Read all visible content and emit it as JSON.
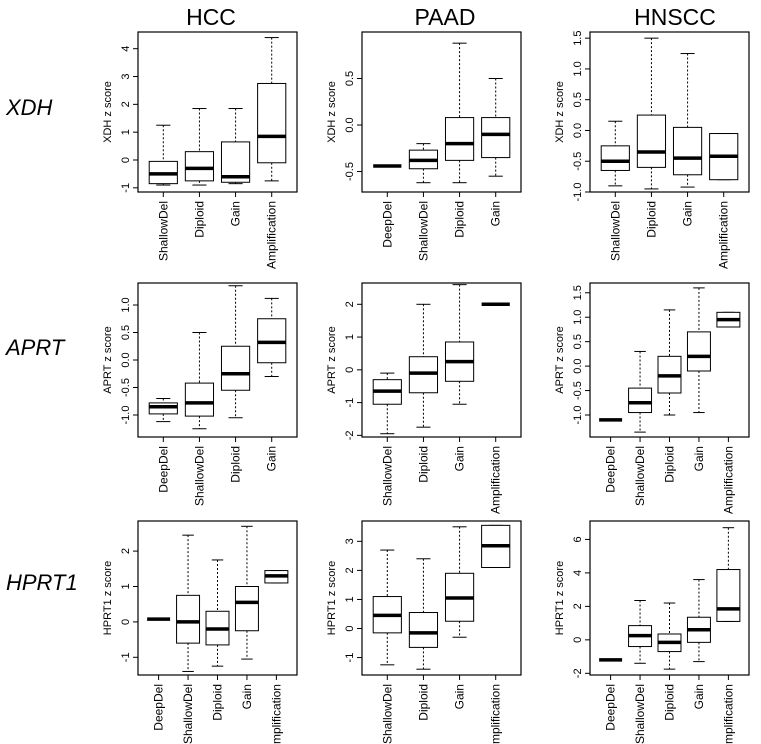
{
  "columns": [
    "HCC",
    "PAAD",
    "HNSCC"
  ],
  "rows": [
    "XDH",
    "APRT",
    "HPRT1"
  ],
  "chart_data": [
    {
      "type": "box",
      "gene": "XDH",
      "dataset": "HCC",
      "ylabel": "XDH z score",
      "ylim": [
        -1.15,
        4.6
      ],
      "yticks": [
        -1,
        0,
        1,
        2,
        3,
        4
      ],
      "categories": [
        "ShallowDel",
        "Diploid",
        "Gain",
        "Amplification"
      ],
      "boxes": [
        {
          "min": -0.9,
          "q1": -0.85,
          "median": -0.5,
          "q3": -0.05,
          "max": 1.25
        },
        {
          "min": -0.9,
          "q1": -0.75,
          "median": -0.3,
          "q3": 0.3,
          "max": 1.85
        },
        {
          "min": -0.85,
          "q1": -0.8,
          "median": -0.6,
          "q3": 0.65,
          "max": 1.85
        },
        {
          "min": -0.75,
          "q1": -0.1,
          "median": 0.85,
          "q3": 2.75,
          "max": 4.4
        }
      ]
    },
    {
      "type": "box",
      "gene": "XDH",
      "dataset": "PAAD",
      "ylabel": "XDH z score",
      "ylim": [
        -0.72,
        1.0
      ],
      "yticks": [
        -0.5,
        0.0,
        0.5
      ],
      "yticklabels": [
        "-0.5",
        "0.0",
        "0.5"
      ],
      "categories": [
        "DeepDel",
        "ShallowDel",
        "Diploid",
        "Gain"
      ],
      "boxes": [
        {
          "min": -0.44,
          "q1": -0.44,
          "median": -0.44,
          "q3": -0.44,
          "max": -0.44
        },
        {
          "min": -0.62,
          "q1": -0.47,
          "median": -0.38,
          "q3": -0.27,
          "max": -0.2
        },
        {
          "min": -0.62,
          "q1": -0.38,
          "median": -0.2,
          "q3": 0.08,
          "max": 0.88
        },
        {
          "min": -0.55,
          "q1": -0.35,
          "median": -0.1,
          "q3": 0.08,
          "max": 0.5
        }
      ]
    },
    {
      "type": "box",
      "gene": "XDH",
      "dataset": "HNSCC",
      "ylabel": "XDH z score",
      "ylim": [
        -1.0,
        1.6
      ],
      "yticks": [
        -1.0,
        -0.5,
        0.0,
        0.5,
        1.0,
        1.5
      ],
      "yticklabels": [
        "-1.0",
        "-0.5",
        "0.0",
        "0.5",
        "1.0",
        "1.5"
      ],
      "categories": [
        "ShallowDel",
        "Diploid",
        "Gain",
        "Amplification"
      ],
      "boxes": [
        {
          "min": -0.9,
          "q1": -0.65,
          "median": -0.5,
          "q3": -0.25,
          "max": 0.15
        },
        {
          "min": -0.95,
          "q1": -0.6,
          "median": -0.35,
          "q3": 0.25,
          "max": 1.5
        },
        {
          "min": -0.92,
          "q1": -0.72,
          "median": -0.45,
          "q3": 0.05,
          "max": 1.25
        },
        {
          "min": -0.8,
          "q1": -0.8,
          "median": -0.42,
          "q3": -0.05,
          "max": -0.05
        }
      ]
    },
    {
      "type": "box",
      "gene": "APRT",
      "dataset": "HCC",
      "ylabel": "APRT z score",
      "ylim": [
        -1.4,
        1.4
      ],
      "yticks": [
        -1.0,
        -0.5,
        0.0,
        0.5,
        1.0
      ],
      "yticklabels": [
        "-1.0",
        "-0.5",
        "0.0",
        "0.5",
        "1.0"
      ],
      "categories": [
        "DeepDel",
        "ShallowDel",
        "Diploid",
        "Gain"
      ],
      "boxes": [
        {
          "min": -1.12,
          "q1": -0.98,
          "median": -0.85,
          "q3": -0.78,
          "max": -0.7
        },
        {
          "min": -1.25,
          "q1": -1.02,
          "median": -0.78,
          "q3": -0.42,
          "max": 0.5
        },
        {
          "min": -1.05,
          "q1": -0.55,
          "median": -0.25,
          "q3": 0.25,
          "max": 1.35
        },
        {
          "min": -0.3,
          "q1": -0.05,
          "median": 0.32,
          "q3": 0.75,
          "max": 1.12
        }
      ]
    },
    {
      "type": "box",
      "gene": "APRT",
      "dataset": "PAAD",
      "ylabel": "APRT z score",
      "ylim": [
        -2.05,
        2.65
      ],
      "yticks": [
        -2,
        -1,
        0,
        1,
        2
      ],
      "categories": [
        "ShallowDel",
        "Diploid",
        "Gain",
        "Amplification"
      ],
      "boxes": [
        {
          "min": -1.95,
          "q1": -1.05,
          "median": -0.65,
          "q3": -0.3,
          "max": -0.1
        },
        {
          "min": -1.75,
          "q1": -0.7,
          "median": -0.1,
          "q3": 0.4,
          "max": 2.0
        },
        {
          "min": -1.05,
          "q1": -0.35,
          "median": 0.25,
          "q3": 0.85,
          "max": 2.6
        },
        {
          "min": 2.0,
          "q1": 2.0,
          "median": 2.0,
          "q3": 2.0,
          "max": 2.0
        }
      ]
    },
    {
      "type": "box",
      "gene": "APRT",
      "dataset": "HNSCC",
      "ylabel": "APRT z score",
      "ylim": [
        -1.45,
        1.7
      ],
      "yticks": [
        -1.0,
        -0.5,
        0.0,
        0.5,
        1.0,
        1.5
      ],
      "yticklabels": [
        "-1.0",
        "-0.5",
        "0.0",
        "0.5",
        "1.0",
        "1.5"
      ],
      "categories": [
        "DeepDel",
        "ShallowDel",
        "Diploid",
        "Gain",
        "Amplification"
      ],
      "boxes": [
        {
          "min": -1.1,
          "q1": -1.1,
          "median": -1.1,
          "q3": -1.1,
          "max": -1.1
        },
        {
          "min": -1.35,
          "q1": -0.95,
          "median": -0.75,
          "q3": -0.45,
          "max": 0.3
        },
        {
          "min": -1.0,
          "q1": -0.55,
          "median": -0.2,
          "q3": 0.2,
          "max": 1.15
        },
        {
          "min": -0.95,
          "q1": -0.1,
          "median": 0.2,
          "q3": 0.7,
          "max": 1.6
        },
        {
          "min": 0.8,
          "q1": 0.8,
          "median": 0.95,
          "q3": 1.1,
          "max": 1.1
        }
      ]
    },
    {
      "type": "box",
      "gene": "HPRT1",
      "dataset": "HCC",
      "ylabel": "HPRT1 z score",
      "ylim": [
        -1.5,
        2.85
      ],
      "yticks": [
        -1,
        0,
        1,
        2
      ],
      "categories": [
        "DeepDel",
        "ShallowDel",
        "Diploid",
        "Gain",
        "Amplification"
      ],
      "boxes": [
        {
          "min": 0.08,
          "q1": 0.08,
          "median": 0.08,
          "q3": 0.08,
          "max": 0.08
        },
        {
          "min": -1.4,
          "q1": -0.6,
          "median": 0.0,
          "q3": 0.75,
          "max": 2.45
        },
        {
          "min": -1.25,
          "q1": -0.65,
          "median": -0.2,
          "q3": 0.3,
          "max": 1.75
        },
        {
          "min": -1.05,
          "q1": -0.25,
          "median": 0.55,
          "q3": 1.0,
          "max": 2.7
        },
        {
          "min": 1.1,
          "q1": 1.1,
          "median": 1.3,
          "q3": 1.45,
          "max": 1.45
        }
      ]
    },
    {
      "type": "box",
      "gene": "HPRT1",
      "dataset": "PAAD",
      "ylabel": "HPRT1 z score",
      "ylim": [
        -1.6,
        3.7
      ],
      "yticks": [
        -1,
        0,
        1,
        2,
        3
      ],
      "categories": [
        "ShallowDel",
        "Diploid",
        "Gain",
        "Amplification"
      ],
      "boxes": [
        {
          "min": -1.25,
          "q1": -0.15,
          "median": 0.45,
          "q3": 1.1,
          "max": 2.7
        },
        {
          "min": -1.4,
          "q1": -0.65,
          "median": -0.15,
          "q3": 0.55,
          "max": 2.4
        },
        {
          "min": -0.3,
          "q1": 0.25,
          "median": 1.05,
          "q3": 1.9,
          "max": 3.5
        },
        {
          "min": 2.1,
          "q1": 2.1,
          "median": 2.85,
          "q3": 3.55,
          "max": 3.55
        }
      ]
    },
    {
      "type": "box",
      "gene": "HPRT1",
      "dataset": "HNSCC",
      "ylabel": "HPRT1 z score",
      "ylim": [
        -2.1,
        7.1
      ],
      "yticks": [
        -2,
        0,
        2,
        4,
        6
      ],
      "categories": [
        "DeepDel",
        "ShallowDel",
        "Diploid",
        "Gain",
        "Amplification"
      ],
      "boxes": [
        {
          "min": -1.2,
          "q1": -1.2,
          "median": -1.2,
          "q3": -1.2,
          "max": -1.2
        },
        {
          "min": -1.4,
          "q1": -0.4,
          "median": 0.25,
          "q3": 0.85,
          "max": 2.35
        },
        {
          "min": -1.75,
          "q1": -0.7,
          "median": -0.15,
          "q3": 0.35,
          "max": 2.2
        },
        {
          "min": -1.3,
          "q1": -0.15,
          "median": 0.6,
          "q3": 1.35,
          "max": 3.6
        },
        {
          "min": 1.1,
          "q1": 1.1,
          "median": 1.85,
          "q3": 4.2,
          "max": 6.7
        }
      ]
    }
  ]
}
